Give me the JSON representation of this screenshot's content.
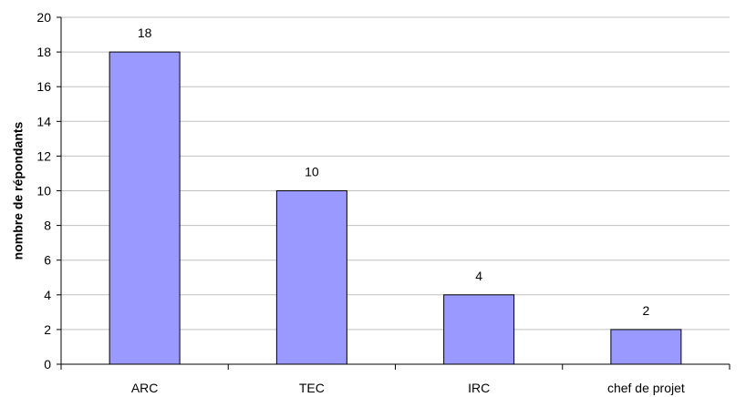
{
  "chart_data": {
    "type": "bar",
    "categories": [
      "ARC",
      "TEC",
      "IRC",
      "chef de projet"
    ],
    "values": [
      18,
      10,
      4,
      2
    ],
    "data_labels": [
      "18",
      "10",
      "4",
      "2"
    ],
    "title": "",
    "xlabel": "",
    "ylabel": "nombre de répondants",
    "ylim": [
      0,
      20
    ],
    "yticks": [
      "0",
      "2",
      "4",
      "6",
      "8",
      "10",
      "12",
      "14",
      "16",
      "18",
      "20"
    ],
    "grid": true,
    "legend": "none",
    "colors": {
      "bar_fill": "#9999ff",
      "bar_stroke": "#000000",
      "grid": "#c0c0c0",
      "axis": "#000000"
    }
  }
}
